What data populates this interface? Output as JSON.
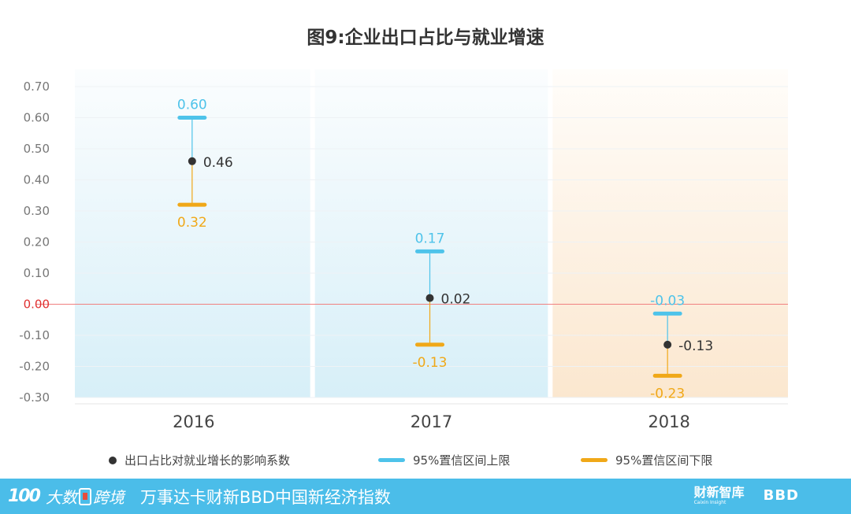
{
  "title": "图9:企业出口占比与就业增速",
  "chart_data": {
    "type": "error-bar",
    "categories": [
      "2016",
      "2017",
      "2018"
    ],
    "ylim": [
      -0.3,
      0.7
    ],
    "yticks": [
      "0.70",
      "0.60",
      "0.50",
      "0.40",
      "0.30",
      "0.20",
      "0.10",
      "0.00",
      "-0.10",
      "-0.20",
      "-0.30"
    ],
    "ytick_values": [
      0.7,
      0.6,
      0.5,
      0.4,
      0.3,
      0.2,
      0.1,
      0.0,
      -0.1,
      -0.2,
      -0.3
    ],
    "points": [
      {
        "year": "2016",
        "estimate": 0.46,
        "upper": 0.6,
        "lower": 0.32,
        "estimate_label": "0.46",
        "upper_label": "0.60",
        "lower_label": "0.32",
        "band": "blue"
      },
      {
        "year": "2017",
        "estimate": 0.02,
        "upper": 0.17,
        "lower": -0.13,
        "estimate_label": "0.02",
        "upper_label": "0.17",
        "lower_label": "-0.13",
        "band": "blue"
      },
      {
        "year": "2018",
        "estimate": -0.13,
        "upper": -0.03,
        "lower": -0.23,
        "estimate_label": "-0.13",
        "upper_label": "-0.03",
        "lower_label": "-0.23",
        "band": "orange"
      }
    ],
    "legend": {
      "estimate": "出口占比对就业增长的影响系数",
      "upper": "95%置信区间上限",
      "lower": "95%置信区间下限"
    },
    "colors": {
      "estimate": "#333333",
      "upper": "#4ec3ea",
      "lower": "#f0a818",
      "zero_line": "#f08080",
      "zero_tick": "#e03030",
      "band_blue_top": "#fbfdfe",
      "band_blue_bottom": "#d7eff8",
      "band_orange_top": "#fffdfa",
      "band_orange_bottom": "#fbe7cf",
      "footer": "#4bbde9"
    }
  },
  "footer": {
    "logo_mark": "100",
    "logo_text_1": "大数",
    "logo_text_2": "跨境",
    "text": "万事达卡财新BBD中国新经济指数",
    "brand1": "财新智库",
    "brand1_sub": "Caixin Insight",
    "brand2": "BBD"
  }
}
